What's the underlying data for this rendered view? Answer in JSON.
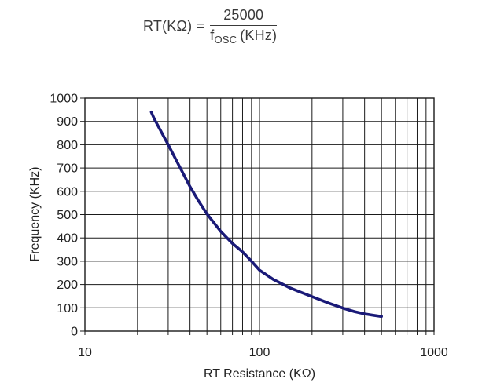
{
  "formula": {
    "lhs": "RT(KΩ) =",
    "numerator": "25000",
    "den_base": "f",
    "den_sub": "OSC",
    "den_unit": "(KHz)"
  },
  "chart_data": {
    "type": "line",
    "title": "",
    "xlabel": "RT Resistance (KΩ)",
    "ylabel": "Frequency (KHz)",
    "x_scale": "log",
    "xlim": [
      10,
      1000
    ],
    "ylim": [
      0,
      1000
    ],
    "x_ticks": [
      10,
      100,
      1000
    ],
    "x_tick_labels": [
      "10",
      "100",
      "1000"
    ],
    "y_ticks": [
      0,
      100,
      200,
      300,
      400,
      500,
      600,
      700,
      800,
      900,
      1000
    ],
    "grid": true,
    "legend_position": "none",
    "line_color": "#1a1a78",
    "grid_color": "#1a1a1a",
    "text_color": "#222222",
    "series": [
      {
        "name": "oscillator-frequency-vs-rt",
        "x": [
          24,
          25,
          30,
          35,
          40,
          45,
          50,
          60,
          70,
          80,
          90,
          100,
          120,
          150,
          200,
          250,
          300,
          350,
          400,
          450,
          500
        ],
        "y": [
          940,
          910,
          800,
          703,
          620,
          556,
          503,
          428,
          376,
          340,
          300,
          262,
          222,
          185,
          148,
          120,
          99,
          84,
          74,
          68,
          63
        ]
      }
    ]
  }
}
